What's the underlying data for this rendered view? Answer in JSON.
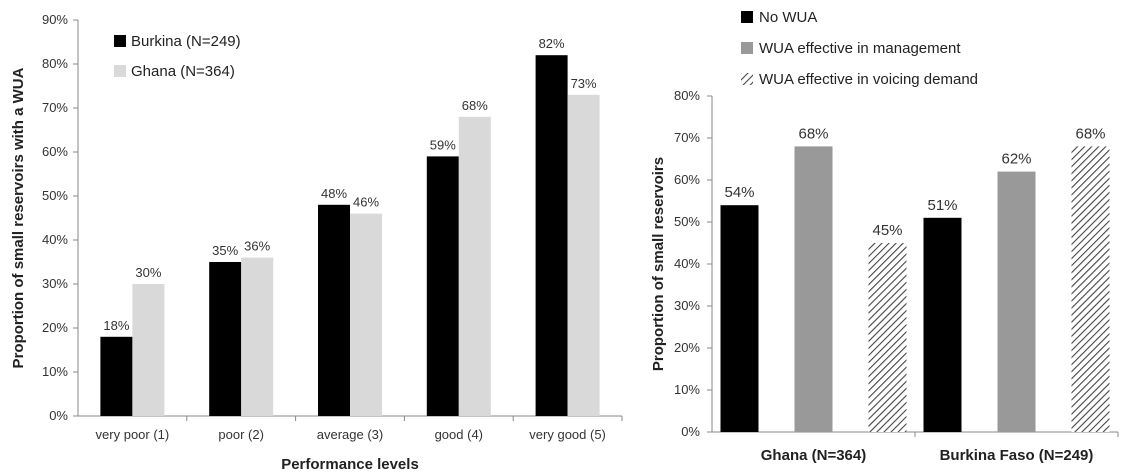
{
  "chart_data": [
    {
      "type": "bar",
      "title": "",
      "xlabel": "Performance levels",
      "ylabel": "Proportion of small reservoirs with a WUA",
      "ylim": [
        0,
        90
      ],
      "yticks": [
        "0%",
        "10%",
        "20%",
        "30%",
        "40%",
        "50%",
        "60%",
        "70%",
        "80%",
        "90%"
      ],
      "categories": [
        "very poor (1)",
        "poor (2)",
        "average (3)",
        "good (4)",
        "very good (5)"
      ],
      "series": [
        {
          "name": "Burkina (N=249)",
          "values": [
            18,
            35,
            48,
            59,
            82
          ],
          "labels": [
            "18%",
            "35%",
            "48%",
            "59%",
            "82%"
          ],
          "color": "#000000"
        },
        {
          "name": "Ghana (N=364)",
          "values": [
            30,
            36,
            46,
            68,
            73
          ],
          "labels": [
            "30%",
            "36%",
            "46%",
            "68%",
            "73%"
          ],
          "color": "#d9d9d9"
        }
      ],
      "legend": "top-left",
      "grid": false
    },
    {
      "type": "bar",
      "title": "",
      "xlabel": "",
      "ylabel": "Proportion of small reservoirs",
      "ylim": [
        0,
        80
      ],
      "yticks": [
        "0%",
        "10%",
        "20%",
        "30%",
        "40%",
        "50%",
        "60%",
        "70%",
        "80%"
      ],
      "categories": [
        "Ghana (N=364)",
        "Burkina Faso (N=249)"
      ],
      "series": [
        {
          "name": "No WUA",
          "values": [
            54,
            51
          ],
          "labels": [
            "54%",
            "51%"
          ],
          "color": "#000000",
          "pattern": "solid"
        },
        {
          "name": "WUA effective in management",
          "values": [
            68,
            62
          ],
          "labels": [
            "68%",
            "62%"
          ],
          "color": "#999999",
          "pattern": "solid"
        },
        {
          "name": "WUA effective in voicing demand",
          "values": [
            45,
            68
          ],
          "labels": [
            "45%",
            "68%"
          ],
          "color": "#555555",
          "pattern": "hatched"
        }
      ],
      "legend": "top",
      "grid": false
    }
  ]
}
